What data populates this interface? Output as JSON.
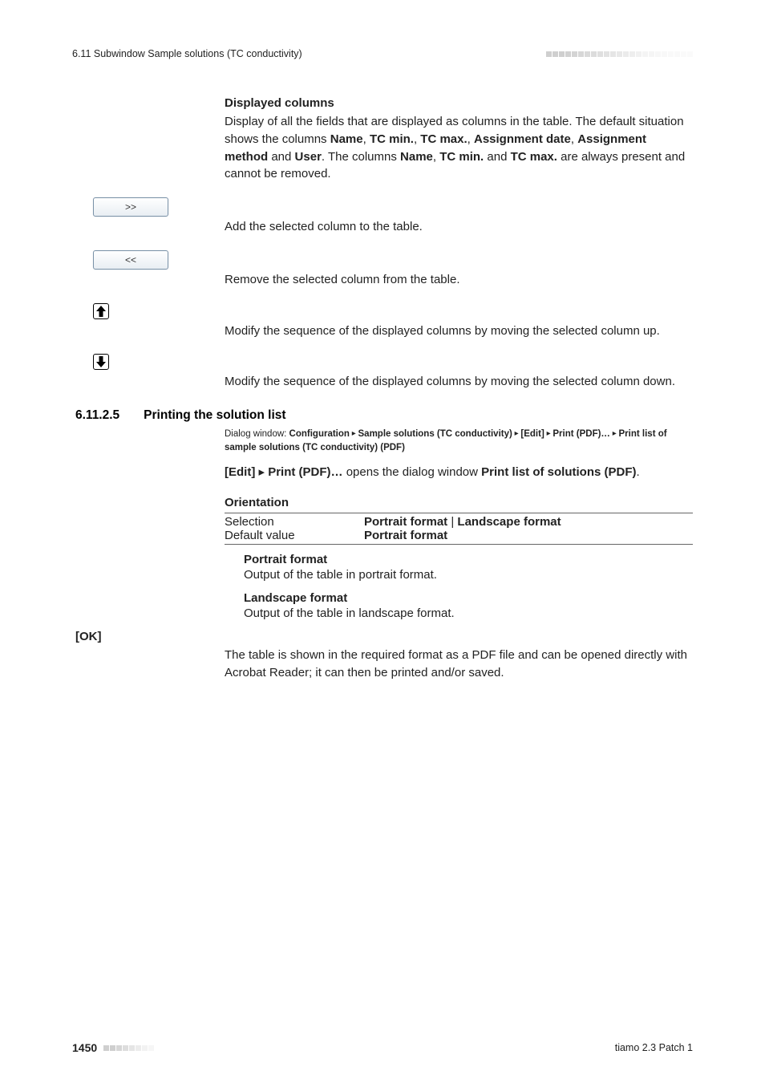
{
  "header": {
    "left": "6.11 Subwindow Sample solutions (TC conductivity)"
  },
  "sections": {
    "displayed_columns": {
      "title": "Displayed columns",
      "body_parts": [
        "Display of all the fields that are displayed as columns in the table. The default situation shows the columns ",
        "Name",
        ", ",
        "TC min.",
        ", ",
        "TC max.",
        ", ",
        "Assignment date",
        ", ",
        "Assignment method",
        " and ",
        "User",
        ". The columns ",
        "Name",
        ", ",
        "TC min.",
        " and ",
        "TC max.",
        " are always present and cannot be removed."
      ]
    },
    "buttons": {
      "add": {
        "label": ">>",
        "desc": "Add the selected column to the table."
      },
      "remove": {
        "label": "<<",
        "desc": "Remove the selected column from the table."
      },
      "up": {
        "glyph": "↑",
        "desc": "Modify the sequence of the displayed columns by moving the selected column up."
      },
      "down": {
        "glyph": "↓",
        "desc": "Modify the sequence of the displayed columns by moving the selected column down."
      }
    },
    "printing": {
      "num": "6.11.2.5",
      "title": "Printing the solution list",
      "path_parts": [
        "Dialog window: ",
        "Configuration",
        " ▸ ",
        "Sample solutions (TC conductivity)",
        " ▸ ",
        "[Edit]",
        " ▸ ",
        "Print (PDF)…",
        " ▸ ",
        "Print list of sample solutions (TC conductivity) (PDF)"
      ],
      "open_line_parts": [
        "[Edit]",
        " ▸ ",
        "Print (PDF)…",
        " opens the dialog window ",
        "Print list of solutions (PDF)",
        "."
      ],
      "orientation_label": "Orientation",
      "selection": {
        "k": "Selection",
        "v1": "Portrait format",
        "sep": " | ",
        "v2": "Landscape format"
      },
      "default": {
        "k": "Default value",
        "v": "Portrait format"
      },
      "portrait": {
        "t": "Portrait format",
        "b": "Output of the table in portrait format."
      },
      "landscape": {
        "t": "Landscape format",
        "b": "Output of the table in landscape format."
      },
      "ok_label": "[OK]",
      "ok_body": "The table is shown in the required format as a PDF file and can be opened directly with Acrobat Reader; it can then be printed and/or saved."
    }
  },
  "footer": {
    "page": "1450",
    "product": "tiamo 2.3 Patch 1"
  },
  "style": {
    "square_color": "#cfcfcf",
    "fade_steps": [
      1.0,
      1.0,
      1.0,
      0.96,
      0.9,
      0.84,
      0.78,
      0.72,
      0.66,
      0.6,
      0.54,
      0.48,
      0.42,
      0.36,
      0.3,
      0.24,
      0.2,
      0.17,
      0.15,
      0.13,
      0.12,
      0.11,
      0.1
    ]
  }
}
